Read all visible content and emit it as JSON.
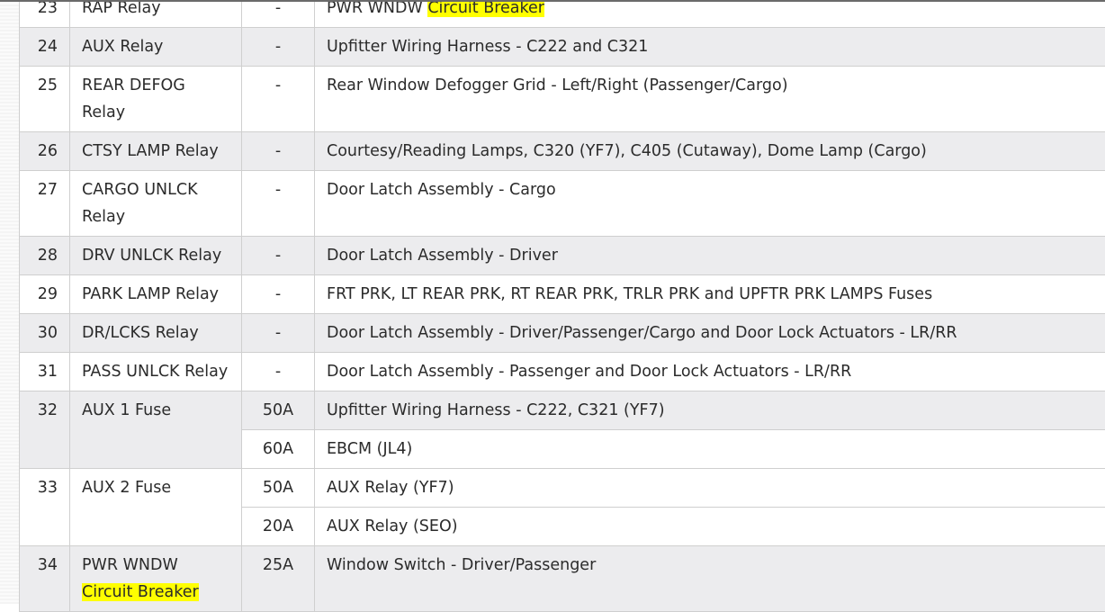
{
  "colors": {
    "row_alt": "#ececee",
    "highlight": "#ffff00"
  },
  "rows": [
    {
      "num": "23",
      "name": "RAP Relay",
      "amps": [
        "-"
      ],
      "desc": [
        {
          "text": "PWR WNDW ",
          "hl": "Circuit Breaker"
        }
      ]
    },
    {
      "num": "24",
      "name": "AUX Relay",
      "amps": [
        "-"
      ],
      "desc": [
        {
          "text": "Upfitter Wiring Harness - C222 and C321"
        }
      ]
    },
    {
      "num": "25",
      "name": "REAR DEFOG Relay",
      "amps": [
        "-"
      ],
      "desc": [
        {
          "text": "Rear Window Defogger Grid - Left/Right (Passenger/Cargo)"
        }
      ]
    },
    {
      "num": "26",
      "name": "CTSY LAMP Relay",
      "amps": [
        "-"
      ],
      "desc": [
        {
          "text": "Courtesy/Reading Lamps, C320 (YF7), C405 (Cutaway), Dome Lamp (Cargo)"
        }
      ]
    },
    {
      "num": "27",
      "name": "CARGO UNLCK Relay",
      "amps": [
        "-"
      ],
      "desc": [
        {
          "text": "Door Latch Assembly - Cargo"
        }
      ]
    },
    {
      "num": "28",
      "name": "DRV UNLCK Relay",
      "amps": [
        "-"
      ],
      "desc": [
        {
          "text": "Door Latch Assembly - Driver"
        }
      ]
    },
    {
      "num": "29",
      "name": "PARK LAMP Relay",
      "amps": [
        "-"
      ],
      "desc": [
        {
          "text": "FRT PRK, LT REAR PRK, RT REAR PRK, TRLR PRK and UPFTR PRK LAMPS Fuses"
        }
      ]
    },
    {
      "num": "30",
      "name": "DR/LCKS Relay",
      "amps": [
        "-"
      ],
      "desc": [
        {
          "text": "Door Latch Assembly - Driver/Passenger/Cargo and Door Lock Actuators - LR/RR"
        }
      ]
    },
    {
      "num": "31",
      "name": "PASS UNLCK Relay",
      "amps": [
        "-"
      ],
      "desc": [
        {
          "text": "Door Latch Assembly - Passenger and Door Lock Actuators - LR/RR"
        }
      ]
    },
    {
      "num": "32",
      "name": "AUX 1 Fuse",
      "amps": [
        "50A",
        "60A"
      ],
      "desc": [
        {
          "text": "Upfitter Wiring Harness - C222, C321 (YF7)"
        },
        {
          "text": "EBCM (JL4)"
        }
      ]
    },
    {
      "num": "33",
      "name": "AUX 2 Fuse",
      "amps": [
        "50A",
        "20A"
      ],
      "desc": [
        {
          "text": "AUX Relay (YF7)"
        },
        {
          "text": "AUX Relay (SEO)"
        }
      ]
    },
    {
      "num": "34",
      "name": "PWR WNDW",
      "name_hl": "Circuit Breaker",
      "amps": [
        "25A"
      ],
      "desc": [
        {
          "text": "Window Switch - Driver/Passenger"
        }
      ]
    }
  ]
}
